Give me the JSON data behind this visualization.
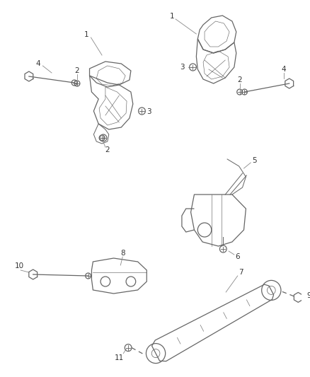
{
  "background_color": "#ffffff",
  "line_color": "#666666",
  "label_color": "#333333",
  "figsize": [
    4.38,
    5.33
  ],
  "dpi": 100,
  "lw": 0.9
}
